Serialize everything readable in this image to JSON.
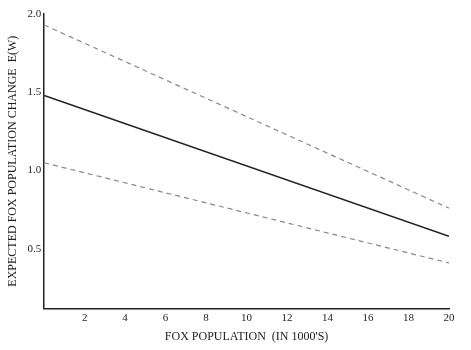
{
  "chart_data": {
    "type": "line",
    "x_label": "FOX POPULATION  (IN 1000'S)",
    "y_label": "EXPECTED FOX POPULATION CHANGE  E(W)",
    "x": [
      0,
      20
    ],
    "series": [
      {
        "color": "#888888",
        "line_style": "dashed",
        "values": [
          1.93,
          0.76
        ]
      },
      {
        "color": "#222222",
        "line_style": "solid",
        "values": [
          1.48,
          0.58
        ]
      },
      {
        "color": "#888888",
        "line_style": "dashed",
        "values": [
          1.05,
          0.41
        ]
      }
    ],
    "xlim": [
      0,
      20
    ],
    "xticks": [
      2,
      4,
      6,
      8,
      10,
      12,
      14,
      16,
      18,
      20
    ],
    "ylim": [
      0.12,
      2.0
    ],
    "yticks": [
      0.5,
      {
        "value": 1.0,
        "label": "1.0"
      },
      1.5,
      {
        "value": 2.0,
        "label": "2.0"
      }
    ],
    "grid": false
  }
}
